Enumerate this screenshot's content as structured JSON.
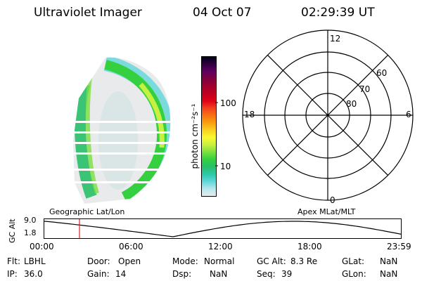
{
  "header": {
    "instrument": "Ultraviolet Imager",
    "date": "04 Oct 07",
    "time": "02:29:39 UT"
  },
  "colorbar": {
    "title": "photon cm⁻²s⁻¹",
    "ticks": [
      "100",
      "10"
    ],
    "colors": [
      "#e8eaec",
      "#b4e8ec",
      "#5fd6d8",
      "#2ac8a8",
      "#28c068",
      "#34d040",
      "#7ae040",
      "#c8f040",
      "#f8f830",
      "#f8d020",
      "#f8a010",
      "#f87010",
      "#f04020",
      "#e00018",
      "#c00020",
      "#a00030",
      "#800040",
      "#600060",
      "#300040",
      "#000018"
    ]
  },
  "polar_grid": {
    "mlt_labels": {
      "top": "12",
      "left": "18",
      "right": "6",
      "bottom": "0"
    },
    "lat_labels": [
      "60",
      "70",
      "80"
    ]
  },
  "altitude_panel": {
    "left_label": "Geographic Lat/Lon",
    "right_label": "Apex MLat/MLT",
    "axis_title": "GC Alt",
    "y_ticks": [
      "9.0",
      "1.8"
    ],
    "x_ticks": [
      "00:00",
      "06:00",
      "12:00",
      "18:00",
      "23:59"
    ],
    "marker_color": "#e02020"
  },
  "info": {
    "row1": [
      {
        "label": "Flt:",
        "value": "LBHL"
      },
      {
        "label": "Door:",
        "value": "Open"
      },
      {
        "label": "Mode:",
        "value": "Normal"
      },
      {
        "label": "GC Alt:",
        "value": "8.3 Re"
      },
      {
        "label": "GLat:",
        "value": "NaN"
      }
    ],
    "row2": [
      {
        "label": "IP:",
        "value": "36.0"
      },
      {
        "label": "Gain:",
        "value": "14"
      },
      {
        "label": "Dsp:",
        "value": "NaN"
      },
      {
        "label": "Seq:",
        "value": "39"
      },
      {
        "label": "GLon:",
        "value": "NaN"
      }
    ]
  }
}
